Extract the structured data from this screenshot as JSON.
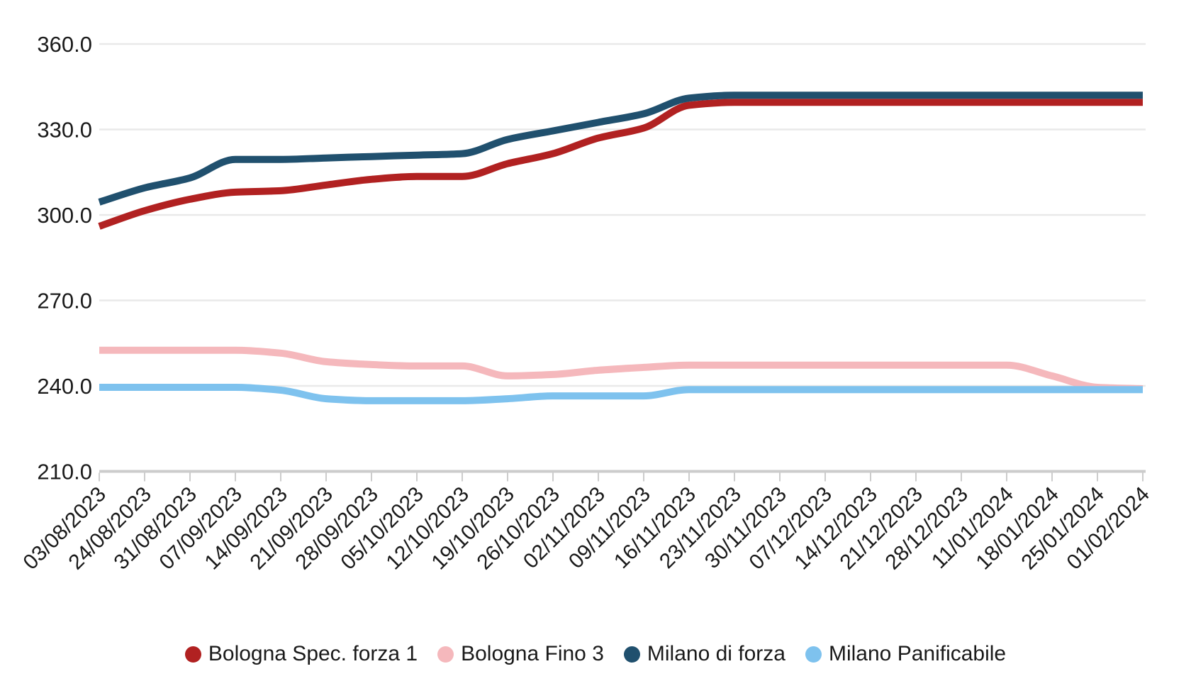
{
  "chart_data": {
    "type": "line",
    "curve": "monotone",
    "title": "",
    "xlabel": "",
    "ylabel": "",
    "grid": true,
    "legend_position": "bottom",
    "background_color": "#ffffff",
    "gridline_color": "#e9e9e9",
    "axis_color": "#cccccc",
    "label_color": "#1a1a1a",
    "x_labels": [
      "03/08/2023",
      "24/08/2023",
      "31/08/2023",
      "07/09/2023",
      "14/09/2023",
      "21/09/2023",
      "28/09/2023",
      "05/10/2023",
      "12/10/2023",
      "19/10/2023",
      "26/10/2023",
      "02/11/2023",
      "09/11/2023",
      "16/11/2023",
      "23/11/2023",
      "30/11/2023",
      "07/12/2023",
      "14/12/2023",
      "21/12/2023",
      "28/12/2023",
      "11/01/2024",
      "18/01/2024",
      "25/01/2024",
      "01/02/2024"
    ],
    "y_axis": {
      "min": 210,
      "max": 360,
      "step": 30,
      "tick_labels": [
        "360.0",
        "330.0",
        "300.0",
        "270.0",
        "240.0",
        "210.0"
      ]
    },
    "series": [
      {
        "name": "Bologna Spec. forza 1",
        "color": "#b12121",
        "values": [
          296,
          301.5,
          305.5,
          308,
          308.5,
          310.5,
          312.5,
          313.5,
          313.5,
          318,
          321.5,
          327,
          330.5,
          338.5,
          339.5,
          339.5,
          339.5,
          339.5,
          339.5,
          339.5,
          339.5,
          339.5,
          339.5,
          339.5
        ]
      },
      {
        "name": "Bologna Fino 3",
        "color": "#f5b8bc",
        "values": [
          252.5,
          252.5,
          252.5,
          252.5,
          251.5,
          248.5,
          247.5,
          247,
          247,
          243.5,
          244,
          245.5,
          246.5,
          247.3,
          247.3,
          247.3,
          247.3,
          247.3,
          247.3,
          247.3,
          247.3,
          243.5,
          239.5,
          239
        ]
      },
      {
        "name": "Milano di forza",
        "color": "#20506e",
        "values": [
          304.5,
          309.5,
          313,
          319.5,
          319.5,
          320,
          320.5,
          321,
          321.5,
          326.5,
          329.5,
          332.5,
          335.5,
          341,
          342,
          342,
          342,
          342,
          342,
          342,
          342,
          342,
          342,
          342
        ]
      },
      {
        "name": "Milano Panificabile",
        "color": "#7ec2ee",
        "values": [
          239.5,
          239.5,
          239.5,
          239.5,
          238.5,
          235.5,
          234.8,
          234.8,
          234.8,
          235.5,
          236.5,
          236.5,
          236.5,
          238.7,
          238.7,
          238.7,
          238.7,
          238.7,
          238.7,
          238.7,
          238.7,
          238.7,
          238.7,
          238.7
        ]
      }
    ]
  }
}
